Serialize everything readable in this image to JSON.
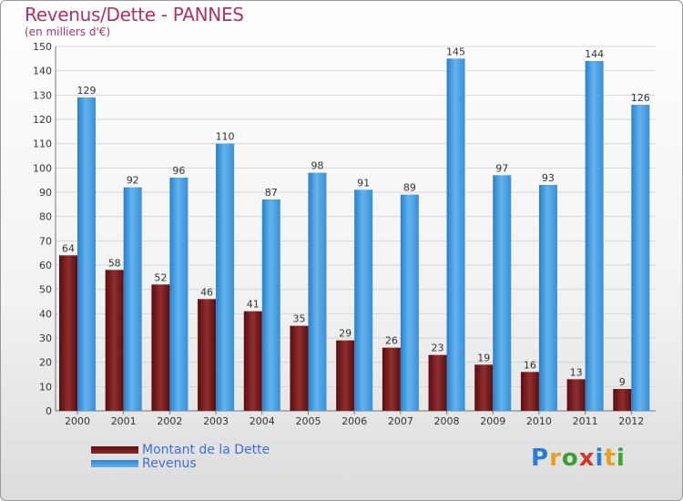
{
  "header": {
    "title": "Revenus/Dette - PANNES",
    "subtitle": "(en milliers d'€)"
  },
  "legend": {
    "debt_label": "Montant de la Dette",
    "revenue_label": "Revenus"
  },
  "logo": {
    "text": "Proxiti"
  },
  "colors": {
    "title": "#b0306b",
    "debt_dark": "#4e0a0c",
    "debt_light": "#8f2e2e",
    "revenue_dark": "#2a7fc9",
    "revenue_light": "#62b3ee",
    "legend_text": "#3d6fd9"
  },
  "chart_data": {
    "type": "bar",
    "title": "Revenus/Dette - PANNES",
    "ylabel": "(en milliers d'€)",
    "xlabel": "",
    "ylim": [
      0,
      150
    ],
    "yticks": [
      0,
      10,
      20,
      30,
      40,
      50,
      60,
      70,
      80,
      90,
      100,
      110,
      120,
      130,
      140,
      150
    ],
    "grid": true,
    "legend_position": "bottom-left",
    "categories": [
      "2000",
      "2001",
      "2002",
      "2003",
      "2004",
      "2005",
      "2006",
      "2007",
      "2008",
      "2009",
      "2010",
      "2011",
      "2012"
    ],
    "series": [
      {
        "name": "Montant de la Dette",
        "values": [
          64,
          58,
          52,
          46,
          41,
          35,
          29,
          26,
          23,
          19,
          16,
          13,
          9
        ]
      },
      {
        "name": "Revenus",
        "values": [
          129,
          92,
          96,
          110,
          87,
          98,
          91,
          89,
          145,
          97,
          93,
          144,
          126
        ]
      }
    ]
  }
}
